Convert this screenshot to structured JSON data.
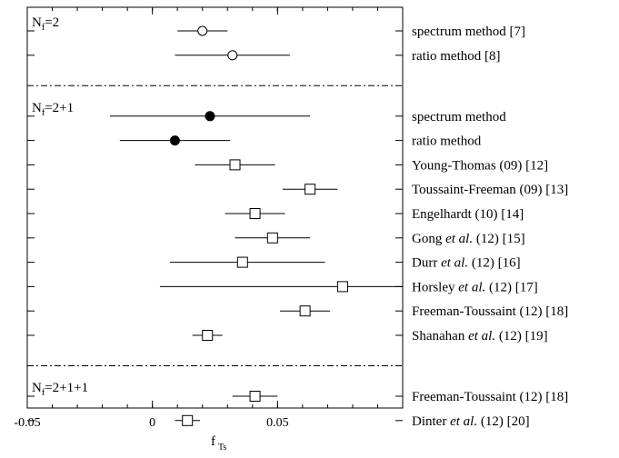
{
  "chart_data": {
    "type": "scatter",
    "title": "",
    "xlabel": "f",
    "xlabel_sub": "Ts",
    "ylabel": "",
    "xlim": [
      -0.05,
      0.1
    ],
    "xticks": [
      -0.05,
      0,
      0.05
    ],
    "xtick_labels": [
      "-0.05",
      "0",
      "0.05"
    ],
    "groups": [
      {
        "label_main": "N",
        "label_sub": "f",
        "label_rest": "=2",
        "items": [
          {
            "label": "spectrum method [7]",
            "value": 0.02,
            "low": 0.01,
            "high": 0.03,
            "marker": "open-circle"
          },
          {
            "label": "ratio method [8]",
            "value": 0.032,
            "low": 0.009,
            "high": 0.055,
            "marker": "open-circle"
          }
        ]
      },
      {
        "label_main": "N",
        "label_sub": "f",
        "label_rest": "=2+1",
        "items": [
          {
            "label": "spectrum method",
            "value": 0.023,
            "low": -0.017,
            "high": 0.063,
            "marker": "filled-circle"
          },
          {
            "label": "ratio method",
            "value": 0.009,
            "low": -0.013,
            "high": 0.031,
            "marker": "filled-circle"
          },
          {
            "label": "Young-Thomas (09) [12]",
            "value": 0.033,
            "low": 0.017,
            "high": 0.049,
            "marker": "open-square"
          },
          {
            "label": "Toussaint-Freeman (09) [13]",
            "value": 0.063,
            "low": 0.052,
            "high": 0.074,
            "marker": "open-square"
          },
          {
            "label": "Engelhardt (10) [14]",
            "value": 0.041,
            "low": 0.029,
            "high": 0.053,
            "marker": "open-square"
          },
          {
            "label_parts": [
              "Gong ",
              "et al.",
              " (12) [15]"
            ],
            "value": 0.048,
            "low": 0.033,
            "high": 0.063,
            "marker": "open-square"
          },
          {
            "label_parts": [
              "Durr ",
              "et al.",
              " (12) [16]"
            ],
            "value": 0.036,
            "low": 0.007,
            "high": 0.069,
            "marker": "open-square"
          },
          {
            "label_parts": [
              "Horsley ",
              "et al.",
              " (12) [17]"
            ],
            "value": 0.076,
            "low": 0.003,
            "high": 0.1,
            "marker": "open-square"
          },
          {
            "label": "Freeman-Toussaint (12) [18]",
            "value": 0.061,
            "low": 0.051,
            "high": 0.071,
            "marker": "open-square"
          },
          {
            "label_parts": [
              "Shanahan ",
              "et al.",
              " (12) [19]"
            ],
            "value": 0.022,
            "low": 0.016,
            "high": 0.028,
            "marker": "open-square"
          }
        ]
      },
      {
        "label_main": "N",
        "label_sub": "f",
        "label_rest": "=2+1+1",
        "items": [
          {
            "label": "Freeman-Toussaint (12) [18]",
            "value": 0.041,
            "low": 0.032,
            "high": 0.05,
            "marker": "open-square"
          },
          {
            "label_parts": [
              "Dinter ",
              "et al.",
              " (12) [20]"
            ],
            "value": 0.014,
            "low": 0.009,
            "high": 0.019,
            "marker": "open-square"
          }
        ]
      }
    ],
    "grid": false,
    "separators": "dash-dot",
    "legend": "none"
  }
}
